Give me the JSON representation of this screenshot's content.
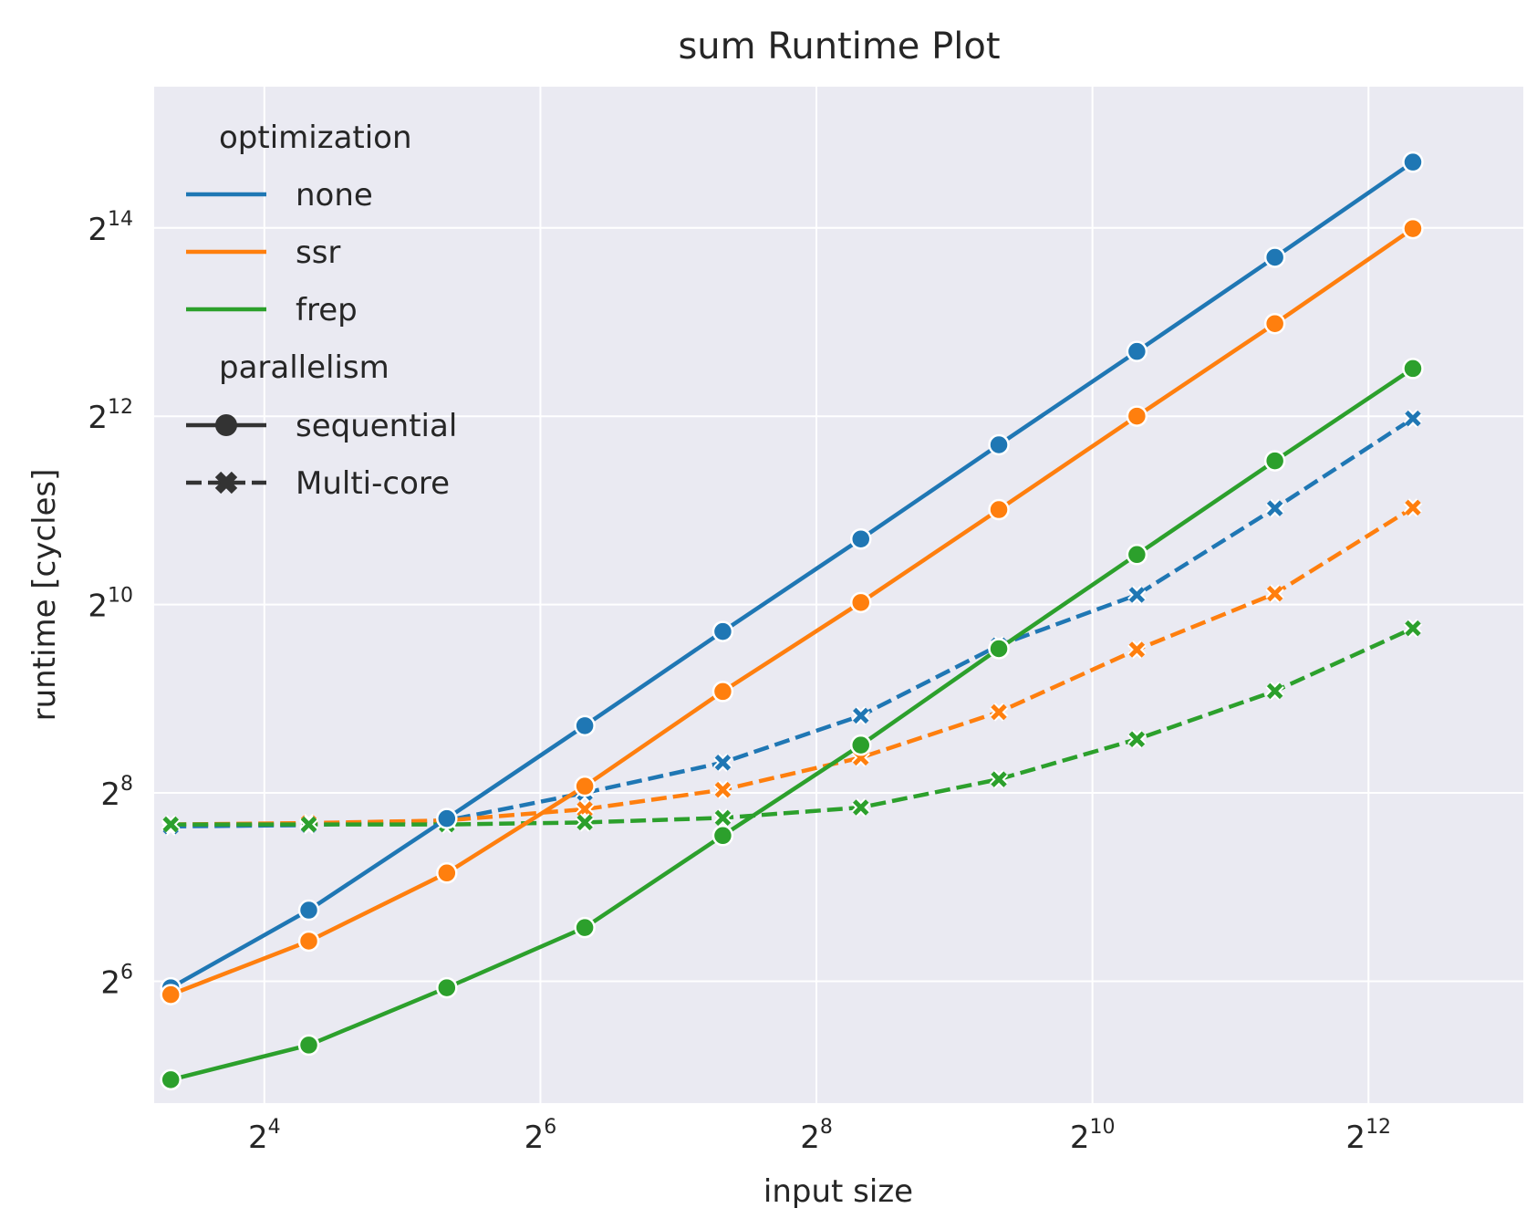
{
  "chart_data": {
    "type": "line",
    "title": "sum Runtime Plot",
    "xlabel": "input size",
    "ylabel": "runtime [cycles]",
    "xscale": "log2",
    "yscale": "log2",
    "xlim": [
      9.2,
      8914
    ],
    "ylim": [
      26.1,
      46340
    ],
    "x_ticks": [
      {
        "value": 16,
        "base": "2",
        "exp": "4"
      },
      {
        "value": 64,
        "base": "2",
        "exp": "6"
      },
      {
        "value": 256,
        "base": "2",
        "exp": "8"
      },
      {
        "value": 1024,
        "base": "2",
        "exp": "10"
      },
      {
        "value": 4096,
        "base": "2",
        "exp": "12"
      }
    ],
    "y_ticks": [
      {
        "value": 64,
        "base": "2",
        "exp": "6"
      },
      {
        "value": 256,
        "base": "2",
        "exp": "8"
      },
      {
        "value": 1024,
        "base": "2",
        "exp": "10"
      },
      {
        "value": 4096,
        "base": "2",
        "exp": "12"
      },
      {
        "value": 16384,
        "base": "2",
        "exp": "14"
      }
    ],
    "grid": true,
    "background": "#eaeaf2",
    "legend_position": "upper left",
    "x": [
      10,
      20,
      40,
      80,
      160,
      320,
      640,
      1280,
      2560,
      5120
    ],
    "series": [
      {
        "optimization": "none",
        "parallelism": "sequential",
        "color": "#1f77b4",
        "dash": "solid",
        "marker": "circle",
        "values": [
          61,
          108,
          212,
          420,
          840,
          1660,
          3320,
          6600,
          13200,
          26600
        ]
      },
      {
        "optimization": "ssr",
        "parallelism": "sequential",
        "color": "#ff7f0e",
        "dash": "solid",
        "marker": "circle",
        "values": [
          58,
          86,
          142,
          269,
          540,
          1040,
          2060,
          4100,
          8100,
          16300
        ]
      },
      {
        "optimization": "frep",
        "parallelism": "sequential",
        "color": "#2ca02c",
        "dash": "solid",
        "marker": "circle",
        "values": [
          31,
          40,
          61,
          95,
          187,
          364,
          740,
          1480,
          2950,
          5820
        ]
      },
      {
        "optimization": "none",
        "parallelism": "Multi-core",
        "color": "#1f77b4",
        "dash": "dashed",
        "marker": "x",
        "values": [
          200,
          202,
          209,
          256,
          320,
          452,
          758,
          1100,
          2080,
          4030
        ]
      },
      {
        "optimization": "ssr",
        "parallelism": "Multi-core",
        "color": "#ff7f0e",
        "dash": "dashed",
        "marker": "x",
        "values": [
          203,
          205,
          209,
          227,
          262,
          332,
          464,
          735,
          1110,
          2090
        ]
      },
      {
        "optimization": "frep",
        "parallelism": "Multi-core",
        "color": "#2ca02c",
        "dash": "dashed",
        "marker": "x",
        "values": [
          203,
          203,
          203,
          206,
          213,
          230,
          283,
          380,
          542,
          860
        ]
      }
    ],
    "legend": {
      "hue_title": "optimization",
      "hue_entries": [
        {
          "label": "none",
          "color": "#1f77b4"
        },
        {
          "label": "ssr",
          "color": "#ff7f0e"
        },
        {
          "label": "frep",
          "color": "#2ca02c"
        }
      ],
      "style_title": "parallelism",
      "style_entries": [
        {
          "label": "sequential",
          "dash": "solid",
          "marker": "circle"
        },
        {
          "label": "Multi-core",
          "dash": "dashed",
          "marker": "x"
        }
      ],
      "neutral_color": "#333333"
    }
  }
}
